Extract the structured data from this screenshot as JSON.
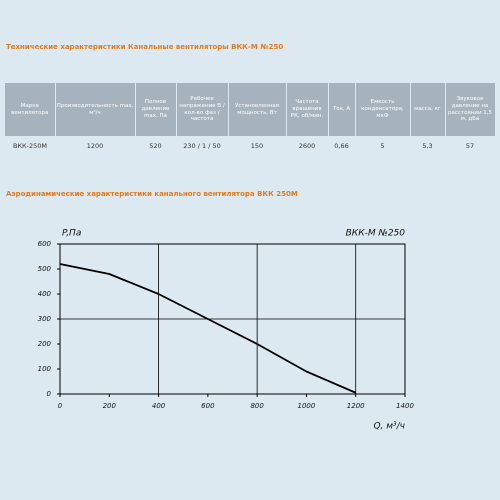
{
  "header1": "Технические характеристики Канальные вентиляторы ВКК-М №250",
  "table": {
    "columns": [
      "Марка вентилятора",
      "Производительность max, м³/ч",
      "Полное давление max, Па",
      "Рабочее напряжение В / кол-во фаз / частота",
      "Установленная мощность, Вт",
      "Частота вращения РК, об/мин.",
      "Ток, А",
      "Емкость конденсатора, мкФ",
      "масса, кг",
      "Звуковое давление на расстоянии 1,5 м, дБа"
    ],
    "rows": [
      [
        "ВКК-250М",
        "1200",
        "520",
        "230 / 1 / 50",
        "150",
        "2600",
        "0,66",
        "5",
        "5,3",
        "57"
      ]
    ]
  },
  "header2": "Аэродинамические характеристики канального вентилятора ВКК 250М",
  "chart_data": {
    "type": "line",
    "title": "ВКК-М №250",
    "y_label": "P,Па",
    "x_label": "Q, м³/ч",
    "x": [
      0,
      200,
      400,
      600,
      800,
      1000,
      1200
    ],
    "values": [
      520,
      480,
      400,
      300,
      200,
      90,
      5
    ],
    "color": "#000000",
    "xlim": [
      0,
      1400
    ],
    "ylim": [
      0,
      600
    ],
    "xticks": [
      0,
      200,
      400,
      600,
      800,
      1000,
      1200,
      1400
    ],
    "yticks": [
      0,
      100,
      200,
      300,
      400,
      500,
      600
    ],
    "grid": true
  }
}
